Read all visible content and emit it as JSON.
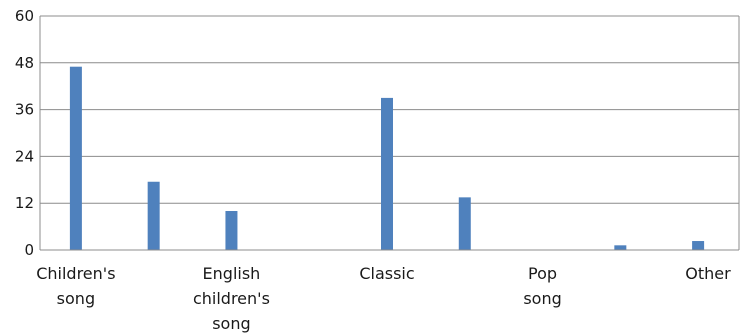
{
  "chart_data": {
    "type": "bar",
    "categories": [
      "Children's song",
      "",
      "English children's song",
      "",
      "Classic",
      "",
      "Pop song",
      "",
      "Other"
    ],
    "category_label_lines": [
      [
        "Children's",
        "song"
      ],
      [],
      [
        "English",
        "children's",
        "song"
      ],
      [],
      [
        "Classic"
      ],
      [],
      [
        "Pop",
        "song"
      ],
      [],
      [
        "Other"
      ]
    ],
    "values": [
      47,
      17.5,
      10,
      0,
      39,
      13.5,
      0,
      1.2,
      2.3
    ],
    "title": "",
    "xlabel": "",
    "ylabel": "",
    "ylim": [
      0,
      60
    ],
    "yticks": [
      "0",
      "12",
      "24",
      "36",
      "48",
      "60"
    ],
    "grid": true,
    "bar_color": "#4f81bd"
  }
}
